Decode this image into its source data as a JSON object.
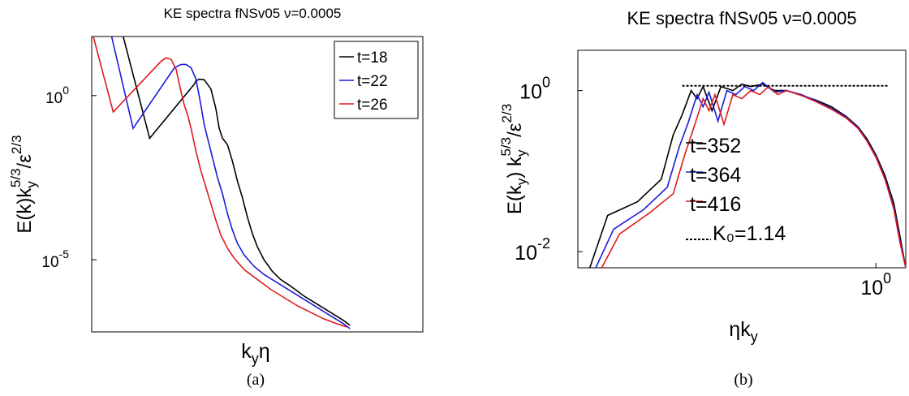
{
  "chart_data": [
    {
      "type": "line",
      "panel_label": "(a)",
      "title": "KE spectra fNSv05  ν=0.0005",
      "ylabel": "E(k)k_y^{5/3}/ε^{2/3}",
      "ylabel_parts": {
        "base": "E(k)k",
        "sub": "y",
        "sup": "5/3",
        "tail": "/ε",
        "tail_sup": "2/3"
      },
      "xlabel": "k_yη",
      "xlabel_parts": {
        "base": "k",
        "sub": "y",
        "tail": "η"
      },
      "yscale": "log",
      "ylim_log10": [
        -7.2,
        1.8
      ],
      "yticks": [
        {
          "log10": 0,
          "label": "10",
          "exp": "0"
        },
        {
          "log10": -5,
          "label": "10",
          "exp": "-5"
        }
      ],
      "x_ticklabels": false,
      "legend": {
        "placement": "top-right",
        "entries": [
          "t=18",
          "t=22",
          "t=26"
        ]
      },
      "series": [
        {
          "name": "t=18",
          "color": "#000000",
          "points": [
            [
              0.095,
              1.8
            ],
            [
              0.175,
              -1.3
            ],
            [
              0.31,
              0.35
            ],
            [
              0.315,
              0.45
            ],
            [
              0.325,
              0.5
            ],
            [
              0.34,
              0.48
            ],
            [
              0.36,
              0.2
            ],
            [
              0.375,
              -0.4
            ],
            [
              0.385,
              -1.0
            ],
            [
              0.395,
              -1.3
            ],
            [
              0.41,
              -1.5
            ],
            [
              0.425,
              -2.0
            ],
            [
              0.44,
              -2.6
            ],
            [
              0.455,
              -3.1
            ],
            [
              0.47,
              -3.7
            ],
            [
              0.485,
              -4.2
            ],
            [
              0.5,
              -4.6
            ],
            [
              0.52,
              -5.0
            ],
            [
              0.545,
              -5.35
            ],
            [
              0.57,
              -5.6
            ],
            [
              0.6,
              -5.8
            ],
            [
              0.64,
              -6.1
            ],
            [
              0.68,
              -6.35
            ],
            [
              0.72,
              -6.6
            ],
            [
              0.76,
              -6.85
            ],
            [
              0.78,
              -7.0
            ]
          ]
        },
        {
          "name": "t=22",
          "color": "#1a1adc",
          "points": [
            [
              0.06,
              1.8
            ],
            [
              0.125,
              -1.0
            ],
            [
              0.25,
              0.85
            ],
            [
              0.27,
              0.95
            ],
            [
              0.285,
              0.95
            ],
            [
              0.3,
              0.85
            ],
            [
              0.315,
              0.5
            ],
            [
              0.33,
              -0.3
            ],
            [
              0.34,
              -0.9
            ],
            [
              0.35,
              -1.3
            ],
            [
              0.365,
              -1.9
            ],
            [
              0.38,
              -2.5
            ],
            [
              0.395,
              -3.0
            ],
            [
              0.41,
              -3.6
            ],
            [
              0.425,
              -4.1
            ],
            [
              0.44,
              -4.5
            ],
            [
              0.46,
              -4.85
            ],
            [
              0.49,
              -5.2
            ],
            [
              0.52,
              -5.45
            ],
            [
              0.56,
              -5.7
            ],
            [
              0.6,
              -5.95
            ],
            [
              0.64,
              -6.2
            ],
            [
              0.68,
              -6.45
            ],
            [
              0.72,
              -6.7
            ],
            [
              0.76,
              -6.95
            ],
            [
              0.78,
              -7.1
            ]
          ]
        },
        {
          "name": "t=26",
          "color": "#e01a1a",
          "points": [
            [
              0.005,
              1.8
            ],
            [
              0.065,
              -0.5
            ],
            [
              0.21,
              1.05
            ],
            [
              0.225,
              1.15
            ],
            [
              0.24,
              1.1
            ],
            [
              0.255,
              0.8
            ],
            [
              0.27,
              0.1
            ],
            [
              0.28,
              -0.3
            ],
            [
              0.29,
              -0.6
            ],
            [
              0.3,
              -1.0
            ],
            [
              0.315,
              -1.7
            ],
            [
              0.33,
              -2.3
            ],
            [
              0.345,
              -2.8
            ],
            [
              0.36,
              -3.3
            ],
            [
              0.375,
              -3.8
            ],
            [
              0.39,
              -4.25
            ],
            [
              0.41,
              -4.65
            ],
            [
              0.43,
              -4.95
            ],
            [
              0.46,
              -5.3
            ],
            [
              0.5,
              -5.6
            ],
            [
              0.54,
              -5.9
            ],
            [
              0.58,
              -6.15
            ],
            [
              0.62,
              -6.4
            ],
            [
              0.66,
              -6.6
            ],
            [
              0.7,
              -6.8
            ],
            [
              0.74,
              -6.95
            ],
            [
              0.77,
              -7.05
            ]
          ]
        }
      ]
    },
    {
      "type": "line",
      "panel_label": "(b)",
      "title": "KE spectra fNSv05 ν=0.0005",
      "ylabel": "E(k_y) k_y^{5/3}/ε^{2/3}",
      "ylabel_parts": {
        "base": "E(k",
        "sub": "y",
        "mid": ") k",
        "sub2": "y",
        "sup": "5/3",
        "tail": "/ε",
        "tail_sup": "2/3"
      },
      "xlabel": "ηk_y",
      "xlabel_parts": {
        "base": "ηk",
        "sub": "y"
      },
      "xscale": "log",
      "yscale": "log",
      "xlim_log10": [
        -1.0,
        0.1
      ],
      "ylim_log10": [
        -2.2,
        0.5
      ],
      "yticks": [
        {
          "log10": 0,
          "label": "10",
          "exp": "0"
        },
        {
          "log10": -2,
          "label": "10",
          "exp": "-2"
        }
      ],
      "xticks": [
        {
          "log10": 0,
          "label": "10",
          "exp": "0"
        }
      ],
      "legend": {
        "placement": "center",
        "entries": [
          "t=352",
          "t=364",
          "t=416",
          "K₀=1.14"
        ]
      },
      "series": [
        {
          "name": "t=352",
          "color": "#000000",
          "points": [
            [
              -0.96,
              -2.2
            ],
            [
              -0.9,
              -1.55
            ],
            [
              -0.8,
              -1.38
            ],
            [
              -0.72,
              -1.1
            ],
            [
              -0.68,
              -0.55
            ],
            [
              -0.65,
              -0.3
            ],
            [
              -0.62,
              0.0
            ],
            [
              -0.6,
              -0.1
            ],
            [
              -0.58,
              0.05
            ],
            [
              -0.55,
              -0.25
            ],
            [
              -0.52,
              0.05
            ],
            [
              -0.48,
              0.0
            ],
            [
              -0.45,
              0.08
            ],
            [
              -0.42,
              0.05
            ],
            [
              -0.38,
              0.08
            ],
            [
              -0.34,
              0.0
            ],
            [
              -0.3,
              0.0
            ],
            [
              -0.25,
              -0.06
            ],
            [
              -0.2,
              -0.12
            ],
            [
              -0.15,
              -0.2
            ],
            [
              -0.1,
              -0.32
            ],
            [
              -0.06,
              -0.45
            ],
            [
              -0.03,
              -0.6
            ],
            [
              0.0,
              -0.8
            ],
            [
              0.03,
              -1.05
            ],
            [
              0.06,
              -1.4
            ],
            [
              0.08,
              -1.8
            ],
            [
              0.1,
              -2.2
            ]
          ]
        },
        {
          "name": "t=364",
          "color": "#1a1adc",
          "points": [
            [
              -0.94,
              -2.2
            ],
            [
              -0.88,
              -1.72
            ],
            [
              -0.78,
              -1.48
            ],
            [
              -0.7,
              -1.2
            ],
            [
              -0.66,
              -0.7
            ],
            [
              -0.63,
              -0.4
            ],
            [
              -0.6,
              -0.05
            ],
            [
              -0.58,
              -0.2
            ],
            [
              -0.56,
              -0.02
            ],
            [
              -0.53,
              -0.38
            ],
            [
              -0.5,
              0.0
            ],
            [
              -0.47,
              -0.05
            ],
            [
              -0.44,
              0.05
            ],
            [
              -0.41,
              0.0
            ],
            [
              -0.38,
              0.1
            ],
            [
              -0.34,
              -0.02
            ],
            [
              -0.3,
              0.0
            ],
            [
              -0.25,
              -0.05
            ],
            [
              -0.2,
              -0.13
            ],
            [
              -0.15,
              -0.22
            ],
            [
              -0.1,
              -0.33
            ],
            [
              -0.06,
              -0.46
            ],
            [
              -0.03,
              -0.62
            ],
            [
              0.0,
              -0.82
            ],
            [
              0.03,
              -1.08
            ],
            [
              0.06,
              -1.45
            ],
            [
              0.08,
              -1.85
            ],
            [
              0.1,
              -2.2
            ]
          ]
        },
        {
          "name": "t=416",
          "color": "#e01a1a",
          "points": [
            [
              -0.92,
              -2.2
            ],
            [
              -0.86,
              -1.78
            ],
            [
              -0.76,
              -1.52
            ],
            [
              -0.68,
              -1.28
            ],
            [
              -0.64,
              -0.78
            ],
            [
              -0.61,
              -0.45
            ],
            [
              -0.58,
              -0.1
            ],
            [
              -0.56,
              -0.25
            ],
            [
              -0.54,
              -0.05
            ],
            [
              -0.51,
              -0.42
            ],
            [
              -0.48,
              -0.05
            ],
            [
              -0.45,
              -0.1
            ],
            [
              -0.42,
              0.0
            ],
            [
              -0.39,
              -0.05
            ],
            [
              -0.36,
              0.05
            ],
            [
              -0.33,
              -0.05
            ],
            [
              -0.3,
              0.0
            ],
            [
              -0.25,
              -0.06
            ],
            [
              -0.2,
              -0.14
            ],
            [
              -0.15,
              -0.23
            ],
            [
              -0.1,
              -0.34
            ],
            [
              -0.06,
              -0.47
            ],
            [
              -0.03,
              -0.63
            ],
            [
              0.0,
              -0.83
            ],
            [
              0.03,
              -1.1
            ],
            [
              0.06,
              -1.47
            ],
            [
              0.08,
              -1.88
            ],
            [
              0.1,
              -2.2
            ]
          ]
        },
        {
          "name": "K₀=1.14",
          "color": "#000000",
          "dashed": true,
          "points": [
            [
              -0.65,
              0.06
            ],
            [
              0.04,
              0.06
            ]
          ]
        }
      ]
    }
  ]
}
